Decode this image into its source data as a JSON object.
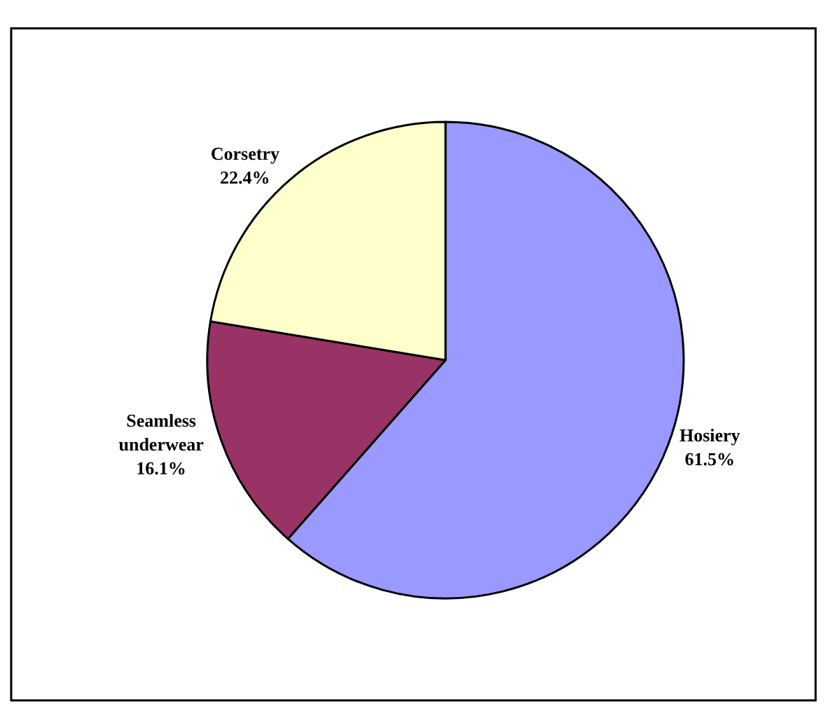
{
  "chart_data": {
    "type": "pie",
    "categories": [
      "Hosiery",
      "Seamless underwear",
      "Corsetry"
    ],
    "values": [
      61.5,
      16.1,
      22.4
    ],
    "value_labels": [
      "61.5%",
      "16.1%",
      "22.4%"
    ],
    "colors": [
      "#9999ff",
      "#993366",
      "#ffffcc"
    ],
    "legend": false
  }
}
